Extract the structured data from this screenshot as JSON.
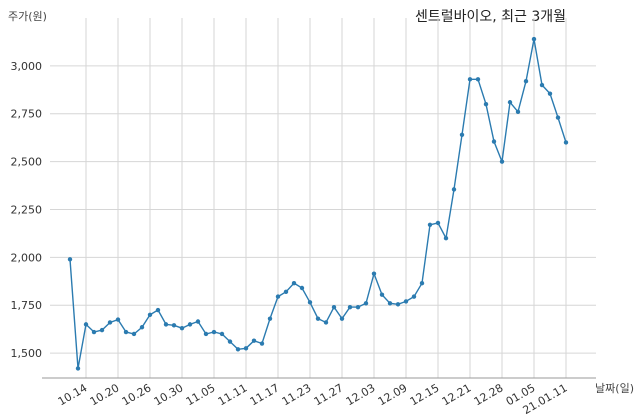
{
  "chart_data": {
    "type": "line",
    "title": "센트럴바이오, 최근 3개월",
    "ylabel": "주가(원)",
    "xlabel": "날짜(일)",
    "ylim": [
      1370,
      3250
    ],
    "yticks": [
      1500,
      1750,
      2000,
      2250,
      2500,
      2750,
      3000
    ],
    "ytick_labels": [
      "1,500",
      "1,750",
      "2,000",
      "2,250",
      "2,500",
      "2,750",
      "3,000"
    ],
    "xtick_labels": [
      "10.14",
      "10.20",
      "10.26",
      "10.30",
      "11.05",
      "11.11",
      "11.17",
      "11.23",
      "11.27",
      "12.03",
      "12.09",
      "12.15",
      "12.21",
      "12.28",
      "01.05",
      "21.01.11"
    ],
    "xtick_index": [
      2,
      6,
      10,
      14,
      18,
      22,
      26,
      30,
      34,
      38,
      42,
      46,
      50,
      54,
      58,
      62
    ],
    "grid": true,
    "line_color": "#2b7bb0",
    "values": [
      1990,
      1420,
      1650,
      1610,
      1620,
      1660,
      1675,
      1610,
      1600,
      1635,
      1700,
      1725,
      1650,
      1645,
      1630,
      1650,
      1665,
      1600,
      1610,
      1600,
      1560,
      1520,
      1525,
      1565,
      1550,
      1680,
      1795,
      1820,
      1865,
      1840,
      1765,
      1680,
      1660,
      1740,
      1680,
      1740,
      1740,
      1760,
      1915,
      1805,
      1760,
      1755,
      1770,
      1795,
      1865,
      2170,
      2180,
      2100,
      2355,
      2640,
      2930,
      2930,
      2800,
      2605,
      2500,
      2810,
      2760,
      2920,
      3140,
      2900,
      2855,
      2730,
      2600
    ]
  }
}
